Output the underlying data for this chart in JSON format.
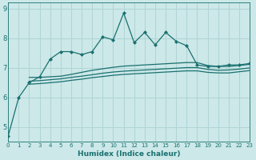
{
  "xlabel": "Humidex (Indice chaleur)",
  "bg_color": "#cce8e8",
  "grid_color": "#b0d4d4",
  "line_color": "#1a7070",
  "xlim": [
    0,
    23
  ],
  "ylim": [
    4.5,
    9.2
  ],
  "yticks": [
    5,
    6,
    7,
    8,
    9
  ],
  "xticks": [
    0,
    1,
    2,
    3,
    4,
    5,
    6,
    7,
    8,
    9,
    10,
    11,
    12,
    13,
    14,
    15,
    16,
    17,
    18,
    19,
    20,
    21,
    22,
    23
  ],
  "line1_x": [
    0,
    1,
    2,
    3,
    4,
    5,
    6,
    7,
    8,
    9,
    10,
    11,
    12,
    13,
    14,
    15,
    16,
    17,
    18,
    19,
    20,
    21,
    22,
    23
  ],
  "line1_y": [
    4.7,
    6.0,
    6.5,
    6.7,
    7.3,
    7.55,
    7.55,
    7.45,
    7.55,
    8.05,
    7.95,
    8.85,
    7.85,
    8.2,
    7.78,
    8.2,
    7.9,
    7.75,
    7.1,
    7.05,
    7.05,
    7.1,
    7.1,
    7.15
  ],
  "line2_x": [
    2,
    3,
    4,
    5,
    6,
    7,
    8,
    9,
    10,
    11,
    12,
    13,
    14,
    15,
    16,
    17,
    18,
    19,
    20,
    21,
    22,
    23
  ],
  "line2_y": [
    6.68,
    6.68,
    6.7,
    6.72,
    6.78,
    6.85,
    6.92,
    6.97,
    7.02,
    7.06,
    7.08,
    7.1,
    7.12,
    7.14,
    7.16,
    7.18,
    7.18,
    7.08,
    7.05,
    7.05,
    7.08,
    7.12
  ],
  "line3_x": [
    2,
    3,
    4,
    5,
    6,
    7,
    8,
    9,
    10,
    11,
    12,
    13,
    14,
    15,
    16,
    17,
    18,
    19,
    20,
    21,
    22,
    23
  ],
  "line3_y": [
    6.55,
    6.57,
    6.6,
    6.63,
    6.68,
    6.72,
    6.77,
    6.82,
    6.86,
    6.89,
    6.91,
    6.93,
    6.95,
    6.97,
    6.99,
    7.01,
    7.01,
    6.95,
    6.92,
    6.93,
    6.96,
    7.0
  ],
  "line4_x": [
    2,
    3,
    4,
    5,
    6,
    7,
    8,
    9,
    10,
    11,
    12,
    13,
    14,
    15,
    16,
    17,
    18,
    19,
    20,
    21,
    22,
    23
  ],
  "line4_y": [
    6.45,
    6.47,
    6.5,
    6.53,
    6.58,
    6.62,
    6.67,
    6.71,
    6.75,
    6.78,
    6.8,
    6.82,
    6.84,
    6.86,
    6.88,
    6.9,
    6.9,
    6.85,
    6.83,
    6.83,
    6.87,
    6.91
  ]
}
